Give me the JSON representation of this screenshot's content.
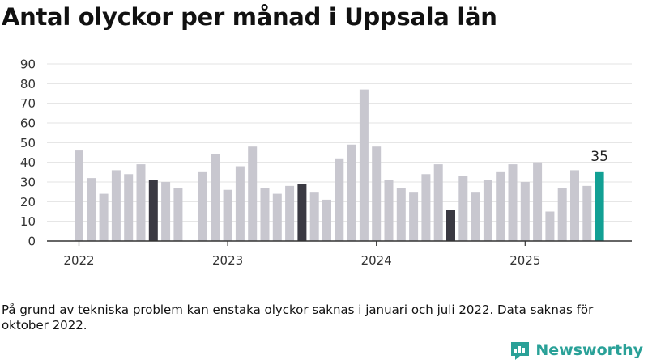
{
  "title": "Antal olyckor per månad i Uppsala län",
  "footnote": "På grund av tekniska problem kan enstaka olyckor saknas i januari och juli 2022. Data saknas för oktober 2022.",
  "brand": {
    "name": "Newsworthy",
    "icon": "newsworthy-logo-icon"
  },
  "colors": {
    "bar": "#c8c7cf",
    "highlight": "#3a3942",
    "latest": "#12a094",
    "grid": "#e3e3e3",
    "axis": "#333333",
    "brand": "#2aa198"
  },
  "chart_data": {
    "type": "bar",
    "title": "Antal olyckor per månad i Uppsala län",
    "xlabel": "",
    "ylabel": "",
    "ylim": [
      0,
      90
    ],
    "y_ticks": [
      0,
      10,
      20,
      30,
      40,
      50,
      60,
      70,
      80,
      90
    ],
    "x_year_labels": [
      "2022",
      "2023",
      "2024",
      "2025"
    ],
    "grid": true,
    "categories": [
      "2022-01",
      "2022-02",
      "2022-03",
      "2022-04",
      "2022-05",
      "2022-06",
      "2022-07",
      "2022-08",
      "2022-09",
      "2022-10",
      "2022-11",
      "2022-12",
      "2023-01",
      "2023-02",
      "2023-03",
      "2023-04",
      "2023-05",
      "2023-06",
      "2023-07",
      "2023-08",
      "2023-09",
      "2023-10",
      "2023-11",
      "2023-12",
      "2024-01",
      "2024-02",
      "2024-03",
      "2024-04",
      "2024-05",
      "2024-06",
      "2024-07",
      "2024-08",
      "2024-09",
      "2024-10",
      "2024-11",
      "2024-12",
      "2025-01",
      "2025-02",
      "2025-03",
      "2025-04",
      "2025-05",
      "2025-06",
      "2025-07"
    ],
    "values": [
      46,
      32,
      24,
      36,
      34,
      39,
      31,
      30,
      27,
      null,
      35,
      44,
      26,
      38,
      48,
      27,
      24,
      28,
      29,
      25,
      21,
      42,
      49,
      77,
      48,
      31,
      27,
      25,
      34,
      39,
      16,
      33,
      25,
      31,
      35,
      39,
      30,
      40,
      15,
      27,
      36,
      28,
      35
    ],
    "highlighted": [
      "2022-07",
      "2023-07",
      "2024-07"
    ],
    "latest": "2025-07",
    "annotations": [
      {
        "category": "2025-07",
        "text": "35"
      }
    ]
  }
}
